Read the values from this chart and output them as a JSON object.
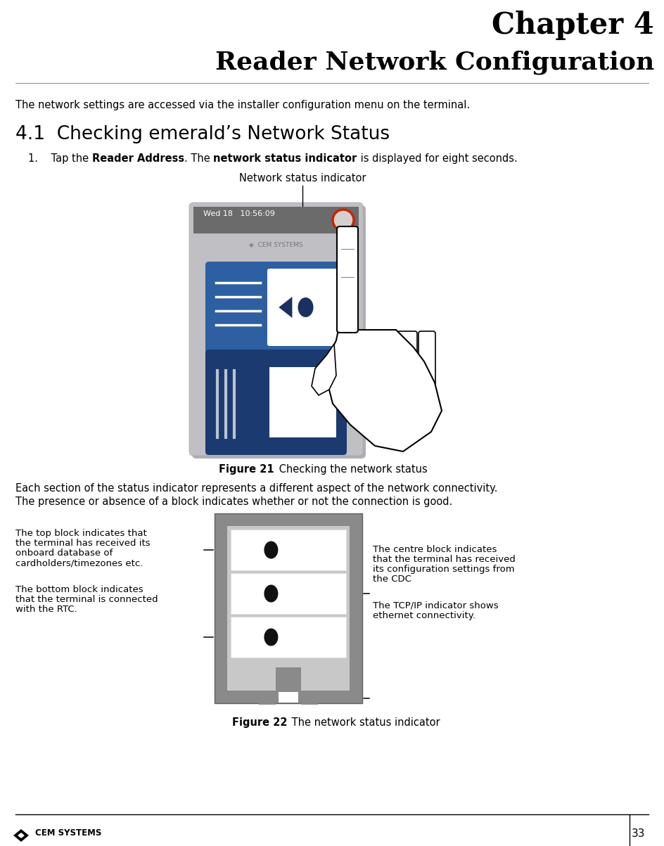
{
  "chapter_title": "Chapter 4",
  "chapter_subtitle": "Reader Network Configuration",
  "intro_text": "The network settings are accessed via the installer configuration menu on the terminal.",
  "section_title": "4.1  Checking emerald’s Network Status",
  "step1_prefix": "1.    Tap the ",
  "step1_bold1": "Reader Address",
  "step1_mid": ". The ",
  "step1_bold2": "network status indicator",
  "step1_suffix": " is displayed for eight seconds.",
  "fig21_label": "Network status indicator",
  "fig21_caption_bold": "Figure 21",
  "fig21_caption_text": " Checking the network status",
  "para2_line1": "Each section of the status indicator represents a different aspect of the network connectivity.",
  "para2_line2": "The presence or absence of a block indicates whether or not the connection is good.",
  "ann_top_left_1": "The top block indicates that",
  "ann_top_left_2": "the terminal has received its",
  "ann_top_left_3": "onboard database of",
  "ann_top_left_4": "cardholders/timezones etc.",
  "ann_bottom_left_1": "The bottom block indicates",
  "ann_bottom_left_2": "that the terminal is connected",
  "ann_bottom_left_3": "with the RTC.",
  "ann_top_right_1": "The centre block indicates",
  "ann_top_right_2": "that the terminal has received",
  "ann_top_right_3": "its configuration settings from",
  "ann_top_right_4": "the CDC",
  "ann_bottom_right_1": "The TCP/IP indicator shows",
  "ann_bottom_right_2": "ethernet connectivity.",
  "fig22_caption_bold": "Figure 22",
  "fig22_caption_text": " The network status indicator",
  "footer_text": "CEM SYSTEMS",
  "page_number": "33",
  "bg_color": "#ffffff",
  "text_color": "#000000",
  "device_bg": "#c0bfc4",
  "device_topbar": "#6b6b6b",
  "card_blue": "#2e5fa3",
  "card_dark_blue": "#1a3a70",
  "nsi_outer": "#9e9e9e",
  "nsi_inner": "#c8c8c8",
  "nsi_cell_bg": "#f5f5f5",
  "nsi_connector_gray": "#888888"
}
